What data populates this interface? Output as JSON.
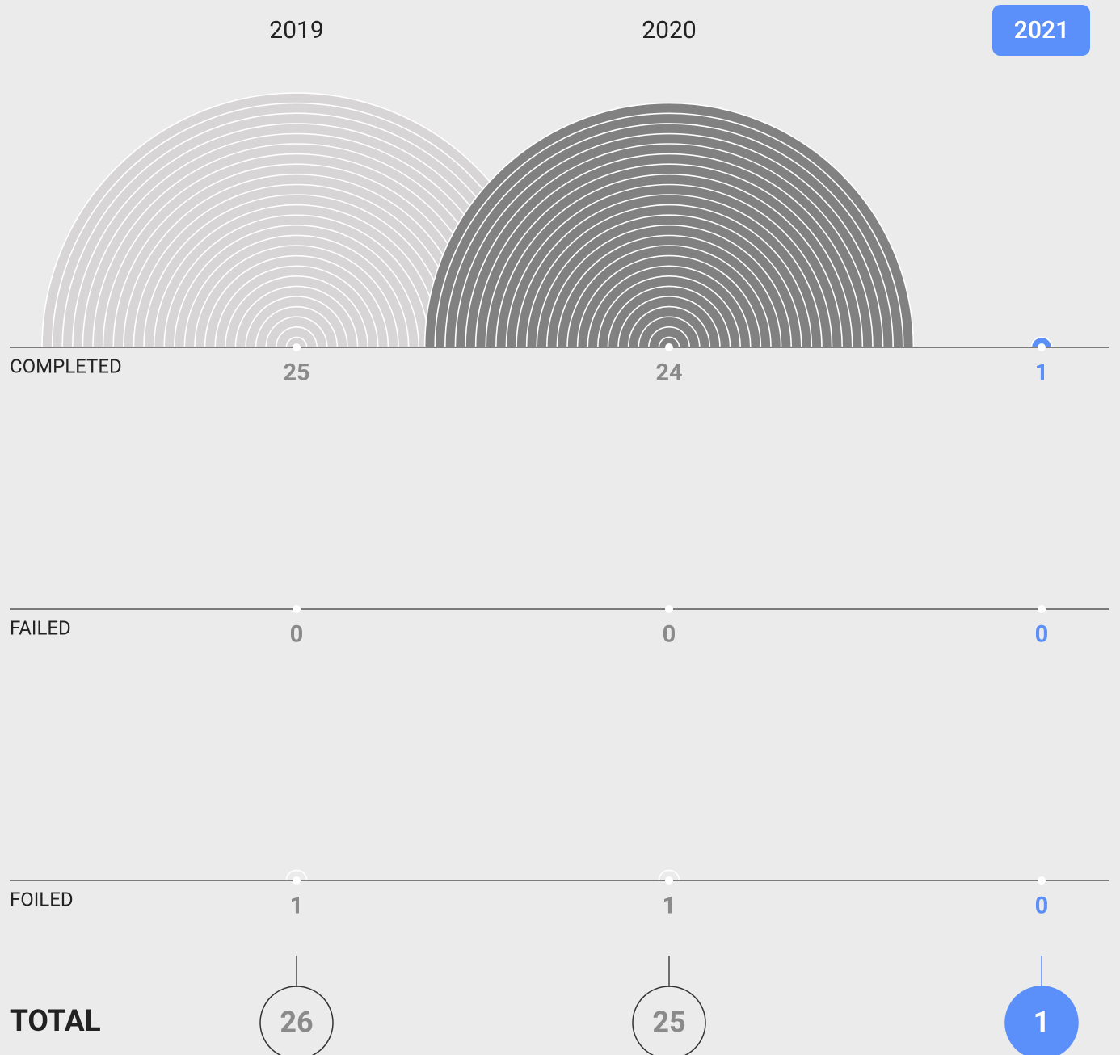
{
  "years": [
    {
      "label": "2019",
      "color": "#d7d5d5"
    },
    {
      "label": "2020",
      "color": "#818181"
    },
    {
      "label": "2021",
      "color": "#5b8ff9",
      "selected": true
    }
  ],
  "rows": [
    {
      "label": "COMPLETED",
      "values": [
        25,
        24,
        1
      ]
    },
    {
      "label": "FAILED",
      "values": [
        0,
        0,
        0
      ]
    },
    {
      "label": "FOILED",
      "values": [
        1,
        1,
        0
      ]
    }
  ],
  "total": {
    "label": "TOTAL",
    "values": [
      26,
      25,
      1
    ]
  }
}
